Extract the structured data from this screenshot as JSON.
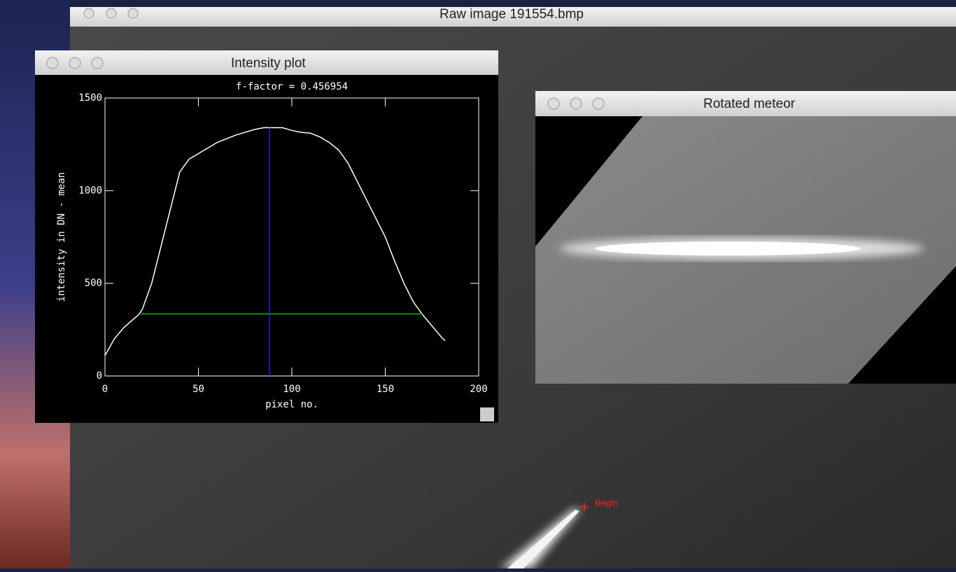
{
  "windows": [
    {
      "title": "Raw image 191554.bmp"
    },
    {
      "title": "Intensity plot"
    },
    {
      "title": "Rotated meteor"
    }
  ],
  "annotation": "Begin",
  "chart_data": {
    "type": "line",
    "title": "f-factor =       0.456954",
    "x_label": "pixel no.",
    "y_label": "intensity in DN - mean",
    "xlim": [
      0,
      200
    ],
    "ylim": [
      0,
      1500
    ],
    "xticks": [
      0,
      50,
      100,
      150,
      200
    ],
    "yticks": [
      0,
      500,
      1000,
      1500
    ],
    "series": [
      {
        "color": "#ffffff",
        "x": [
          0,
          5,
          10,
          15,
          18,
          20,
          25,
          30,
          35,
          40,
          45,
          50,
          55,
          60,
          65,
          70,
          75,
          80,
          85,
          90,
          95,
          100,
          105,
          110,
          115,
          120,
          125,
          130,
          135,
          140,
          145,
          150,
          155,
          160,
          165,
          170,
          175,
          180,
          182
        ],
        "values": [
          110,
          200,
          260,
          305,
          330,
          360,
          500,
          700,
          900,
          1100,
          1170,
          1200,
          1230,
          1260,
          1280,
          1300,
          1315,
          1330,
          1340,
          1340,
          1340,
          1325,
          1315,
          1310,
          1290,
          1260,
          1220,
          1150,
          1050,
          950,
          850,
          750,
          620,
          500,
          400,
          330,
          270,
          210,
          190
        ]
      },
      {
        "color": "#00c000",
        "x": [
          19,
          170
        ],
        "values": [
          335,
          335
        ]
      },
      {
        "color": "#2020ff",
        "x": [
          88,
          88
        ],
        "values": [
          0,
          1340
        ]
      }
    ]
  }
}
